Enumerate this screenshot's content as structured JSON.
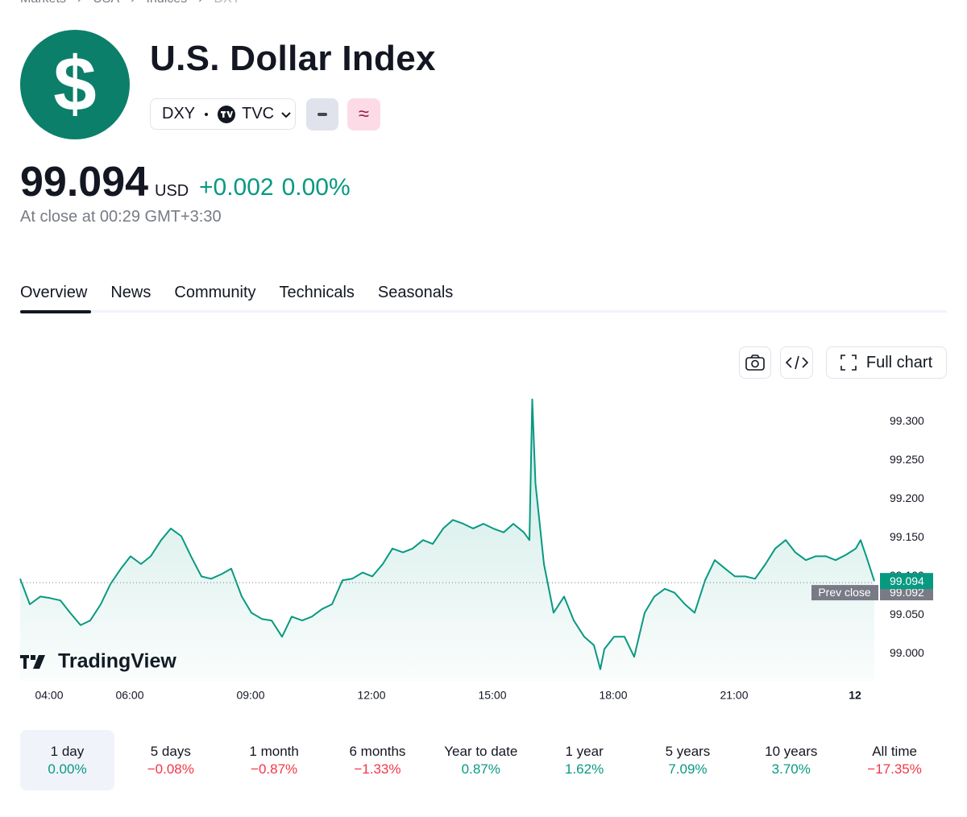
{
  "breadcrumbs": [
    "Markets",
    "USA",
    "Indices",
    "DXY"
  ],
  "header": {
    "title": "U.S. Dollar Index",
    "symbol": "DXY",
    "exchange": "TVC",
    "price": "99.094",
    "currency": "USD",
    "change": "+0.002",
    "change_percent": "0.00%",
    "status": "At close at 00:29 GMT+3:30"
  },
  "tabs": [
    "Overview",
    "News",
    "Community",
    "Technicals",
    "Seasonals"
  ],
  "toolbar": {
    "full_chart": "Full chart"
  },
  "chart_data": {
    "type": "line",
    "watermark": "TradingView",
    "color": "#089981",
    "x": [
      3.28,
      3.52,
      3.78,
      4.02,
      4.28,
      4.52,
      4.78,
      5.02,
      5.28,
      5.52,
      5.78,
      6.02,
      6.28,
      6.52,
      6.78,
      7.02,
      7.28,
      7.52,
      7.78,
      8.02,
      8.28,
      8.52,
      8.78,
      9.02,
      9.28,
      9.52,
      9.78,
      10.02,
      10.28,
      10.52,
      10.78,
      11.02,
      11.28,
      11.52,
      11.78,
      12.02,
      12.28,
      12.52,
      12.78,
      13.02,
      13.28,
      13.52,
      13.78,
      14.02,
      14.28,
      14.52,
      14.78,
      15.02,
      15.28,
      15.52,
      15.78,
      15.92,
      15.99,
      16.07,
      16.28,
      16.52,
      16.78,
      17.02,
      17.28,
      17.52,
      17.68,
      17.78,
      18.02,
      18.28,
      18.52,
      18.78,
      19.02,
      19.28,
      19.52,
      19.78,
      20.02,
      20.28,
      20.52,
      20.78,
      21.02,
      21.28,
      21.52,
      21.78,
      22.02,
      22.28,
      22.52,
      22.78,
      23.02,
      23.28,
      23.52,
      23.78,
      24.02,
      24.14,
      24.28,
      24.48
    ],
    "values": [
      99.097,
      99.064,
      99.074,
      99.072,
      99.069,
      99.053,
      99.037,
      99.043,
      99.064,
      99.09,
      99.11,
      99.126,
      99.116,
      99.126,
      99.147,
      99.162,
      99.152,
      99.126,
      99.1,
      99.097,
      99.103,
      99.11,
      99.074,
      99.053,
      99.045,
      99.043,
      99.022,
      99.048,
      99.043,
      99.048,
      99.058,
      99.064,
      99.095,
      99.097,
      99.105,
      99.1,
      99.116,
      99.136,
      99.131,
      99.136,
      99.147,
      99.142,
      99.162,
      99.173,
      99.168,
      99.162,
      99.168,
      99.162,
      99.157,
      99.168,
      99.157,
      99.147,
      99.329,
      99.22,
      99.116,
      99.053,
      99.074,
      99.043,
      99.022,
      99.011,
      98.98,
      99.006,
      99.022,
      99.022,
      98.996,
      99.053,
      99.074,
      99.084,
      99.079,
      99.064,
      99.053,
      99.095,
      99.121,
      99.11,
      99.1,
      99.1,
      99.097,
      99.116,
      99.136,
      99.147,
      99.131,
      99.121,
      99.126,
      99.126,
      99.121,
      99.128,
      99.136,
      99.147,
      99.126,
      99.094
    ],
    "xlim": [
      3.28,
      24.48
    ],
    "xticks": [
      {
        "value": 4,
        "label": "04:00"
      },
      {
        "value": 6,
        "label": "06:00"
      },
      {
        "value": 9,
        "label": "09:00"
      },
      {
        "value": 12,
        "label": "12:00"
      },
      {
        "value": 15,
        "label": "15:00"
      },
      {
        "value": 18,
        "label": "18:00"
      },
      {
        "value": 21,
        "label": "21:00"
      },
      {
        "value": 24,
        "label": "12"
      }
    ],
    "ylim": [
      98.965,
      99.34
    ],
    "yticks": [
      {
        "value": 99,
        "label": "99.000"
      },
      {
        "value": 99.05,
        "label": "99.050"
      },
      {
        "value": 99.1,
        "label": "99.100"
      },
      {
        "value": 99.15,
        "label": "99.150"
      },
      {
        "value": 99.2,
        "label": "99.200"
      },
      {
        "value": 99.25,
        "label": "99.250"
      },
      {
        "value": 99.3,
        "label": "99.300"
      }
    ],
    "prev_close": {
      "label": "Prev close",
      "value": 99.092
    }
  },
  "periods": [
    {
      "label": "1 day",
      "change": "0.00%"
    },
    {
      "label": "5 days",
      "change": "−0.08%"
    },
    {
      "label": "1 month",
      "change": "−0.87%"
    },
    {
      "label": "6 months",
      "change": "−1.33%"
    },
    {
      "label": "Year to date",
      "change": "0.87%"
    },
    {
      "label": "1 year",
      "change": "1.62%"
    },
    {
      "label": "5 years",
      "change": "7.09%"
    },
    {
      "label": "10 years",
      "change": "3.70%"
    },
    {
      "label": "All time",
      "change": "−17.35%"
    }
  ]
}
